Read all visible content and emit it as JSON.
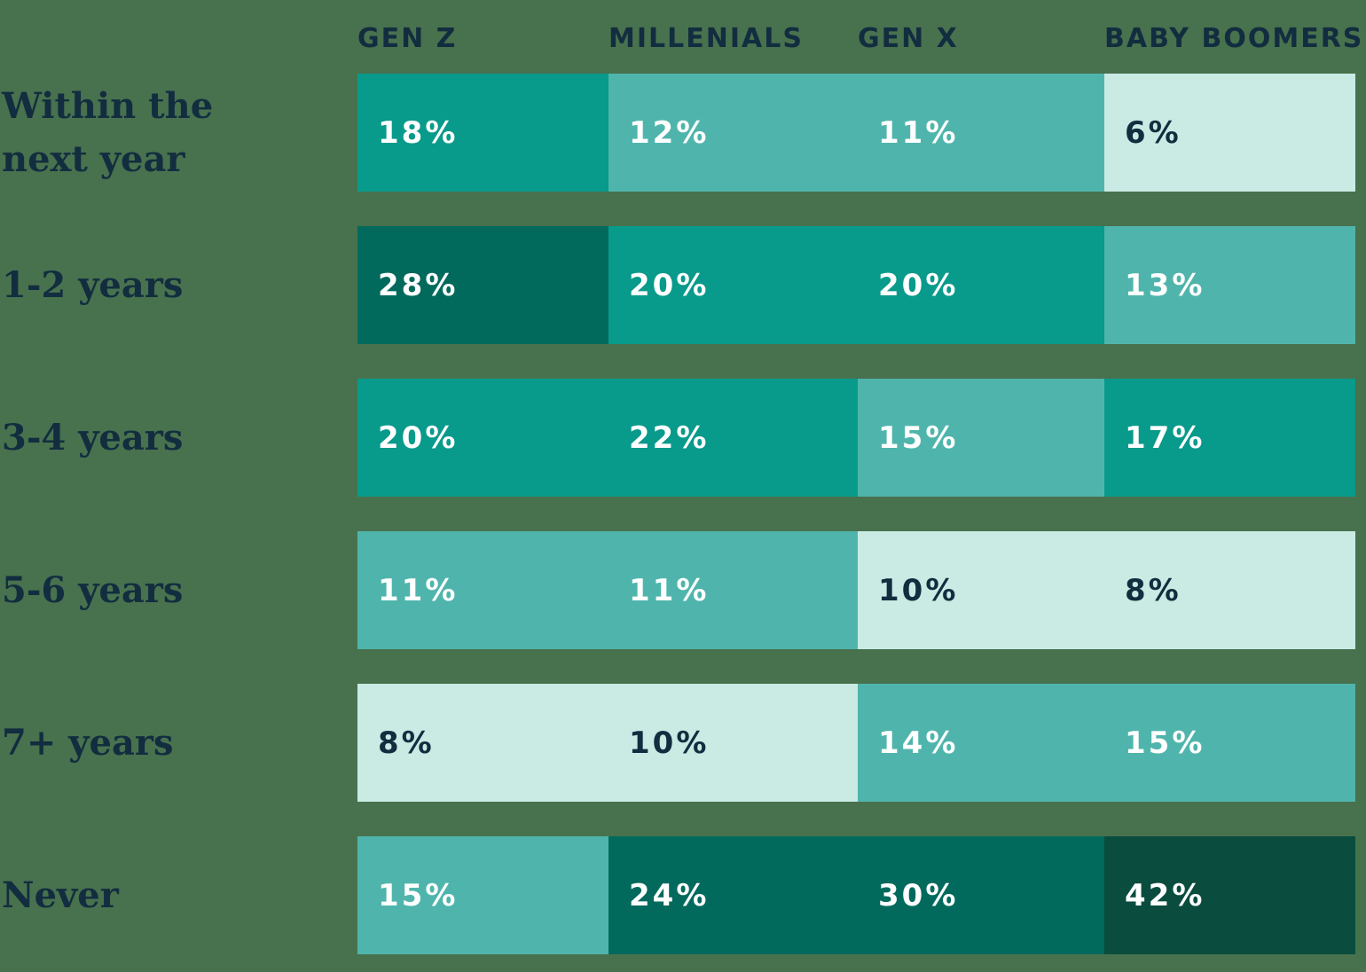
{
  "palette": {
    "background": "#48714E",
    "navy_text": "#122D3F",
    "white_text": "#FFFFFF",
    "shade_darkest": "#0A4C3E",
    "shade_dark": "#016A5C",
    "shade_medium": "#089A8B",
    "shade_light": "#4FB5AC",
    "shade_mint": "#C9EBE4"
  },
  "columns": [
    "GEN Z",
    "MILLENIALS",
    "GEN X",
    "BABY BOOMERS"
  ],
  "rows": [
    {
      "label": "Within the next year",
      "cells": [
        {
          "value": "18%",
          "shade": "medium"
        },
        {
          "value": "12%",
          "shade": "light"
        },
        {
          "value": "11%",
          "shade": "light"
        },
        {
          "value": "6%",
          "shade": "mint"
        }
      ]
    },
    {
      "label": "1-2 years",
      "cells": [
        {
          "value": "28%",
          "shade": "dark"
        },
        {
          "value": "20%",
          "shade": "medium"
        },
        {
          "value": "20%",
          "shade": "medium"
        },
        {
          "value": "13%",
          "shade": "light"
        }
      ]
    },
    {
      "label": "3-4 years",
      "cells": [
        {
          "value": "20%",
          "shade": "medium"
        },
        {
          "value": "22%",
          "shade": "medium"
        },
        {
          "value": "15%",
          "shade": "light"
        },
        {
          "value": "17%",
          "shade": "medium"
        }
      ]
    },
    {
      "label": "5-6 years",
      "cells": [
        {
          "value": "11%",
          "shade": "light"
        },
        {
          "value": "11%",
          "shade": "light"
        },
        {
          "value": "10%",
          "shade": "mint"
        },
        {
          "value": "8%",
          "shade": "mint"
        }
      ]
    },
    {
      "label": "7+ years",
      "cells": [
        {
          "value": "8%",
          "shade": "mint"
        },
        {
          "value": "10%",
          "shade": "mint"
        },
        {
          "value": "14%",
          "shade": "light"
        },
        {
          "value": "15%",
          "shade": "light"
        }
      ]
    },
    {
      "label": "Never",
      "cells": [
        {
          "value": "15%",
          "shade": "light"
        },
        {
          "value": "24%",
          "shade": "dark"
        },
        {
          "value": "30%",
          "shade": "dark"
        },
        {
          "value": "42%",
          "shade": "darkest"
        }
      ]
    }
  ],
  "chart_data": {
    "type": "heatmap",
    "columns": [
      "GEN Z",
      "MILLENIALS",
      "GEN X",
      "BABY BOOMERS"
    ],
    "row_categories": [
      "Within the next year",
      "1-2 years",
      "3-4 years",
      "5-6 years",
      "7+ years",
      "Never"
    ],
    "values_percent": [
      [
        18,
        12,
        11,
        6
      ],
      [
        28,
        20,
        20,
        13
      ],
      [
        20,
        22,
        15,
        17
      ],
      [
        11,
        11,
        10,
        8
      ],
      [
        8,
        10,
        14,
        15
      ],
      [
        15,
        24,
        30,
        42
      ]
    ],
    "value_unit": "%",
    "color_encoding": "darker teal = higher percentage; lightest mint cells use dark navy value labels, all other cells use white value labels",
    "legend": "none",
    "grid": "off"
  }
}
